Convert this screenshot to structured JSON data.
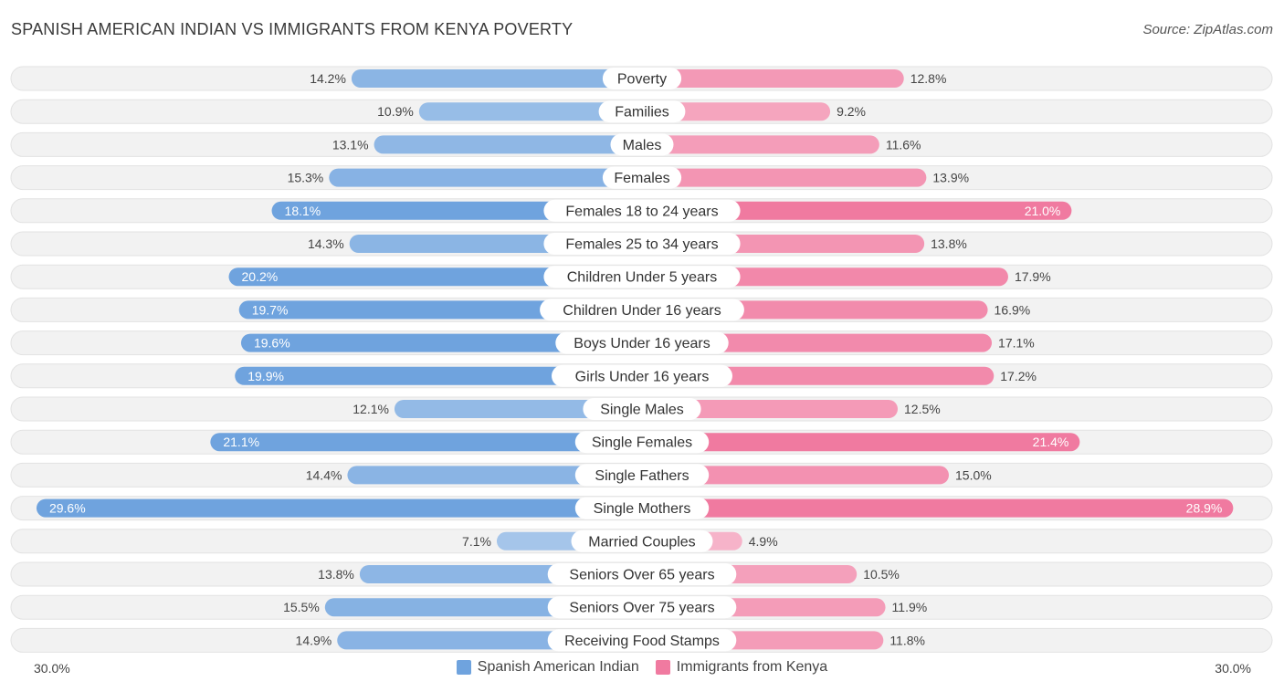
{
  "title": "SPANISH AMERICAN INDIAN VS IMMIGRANTS FROM KENYA POVERTY",
  "source": "Source: ZipAtlas.com",
  "chart_data": {
    "type": "bar",
    "orientation": "horizontal-diverging",
    "title": "SPANISH AMERICAN INDIAN VS IMMIGRANTS FROM KENYA POVERTY",
    "xlim": [
      0,
      30
    ],
    "axis_labels": {
      "left": "30.0%",
      "right": "30.0%"
    },
    "categories": [
      "Poverty",
      "Families",
      "Males",
      "Females",
      "Females 18 to 24 years",
      "Females 25 to 34 years",
      "Children Under 5 years",
      "Children Under 16 years",
      "Boys Under 16 years",
      "Girls Under 16 years",
      "Single Males",
      "Single Females",
      "Single Fathers",
      "Single Mothers",
      "Married Couples",
      "Seniors Over 65 years",
      "Seniors Over 75 years",
      "Receiving Food Stamps"
    ],
    "series": [
      {
        "name": "Spanish American Indian",
        "color": "#6fa3de",
        "values": [
          14.2,
          10.9,
          13.1,
          15.3,
          18.1,
          14.3,
          20.2,
          19.7,
          19.6,
          19.9,
          12.1,
          21.1,
          14.4,
          29.6,
          7.1,
          13.8,
          15.5,
          14.9
        ],
        "labels": [
          "14.2%",
          "10.9%",
          "13.1%",
          "15.3%",
          "18.1%",
          "14.3%",
          "20.2%",
          "19.7%",
          "19.6%",
          "19.9%",
          "12.1%",
          "21.1%",
          "14.4%",
          "29.6%",
          "7.1%",
          "13.8%",
          "15.5%",
          "14.9%"
        ]
      },
      {
        "name": "Immigrants from Kenya",
        "color": "#f07aa0",
        "values": [
          12.8,
          9.2,
          11.6,
          13.9,
          21.0,
          13.8,
          17.9,
          16.9,
          17.1,
          17.2,
          12.5,
          21.4,
          15.0,
          28.9,
          4.9,
          10.5,
          11.9,
          11.8
        ],
        "labels": [
          "12.8%",
          "9.2%",
          "11.6%",
          "13.9%",
          "21.0%",
          "13.8%",
          "17.9%",
          "16.9%",
          "17.1%",
          "17.2%",
          "12.5%",
          "21.4%",
          "15.0%",
          "28.9%",
          "4.9%",
          "10.5%",
          "11.9%",
          "11.8%"
        ]
      }
    ],
    "legend": [
      "Spanish American Indian",
      "Immigrants from Kenya"
    ]
  }
}
